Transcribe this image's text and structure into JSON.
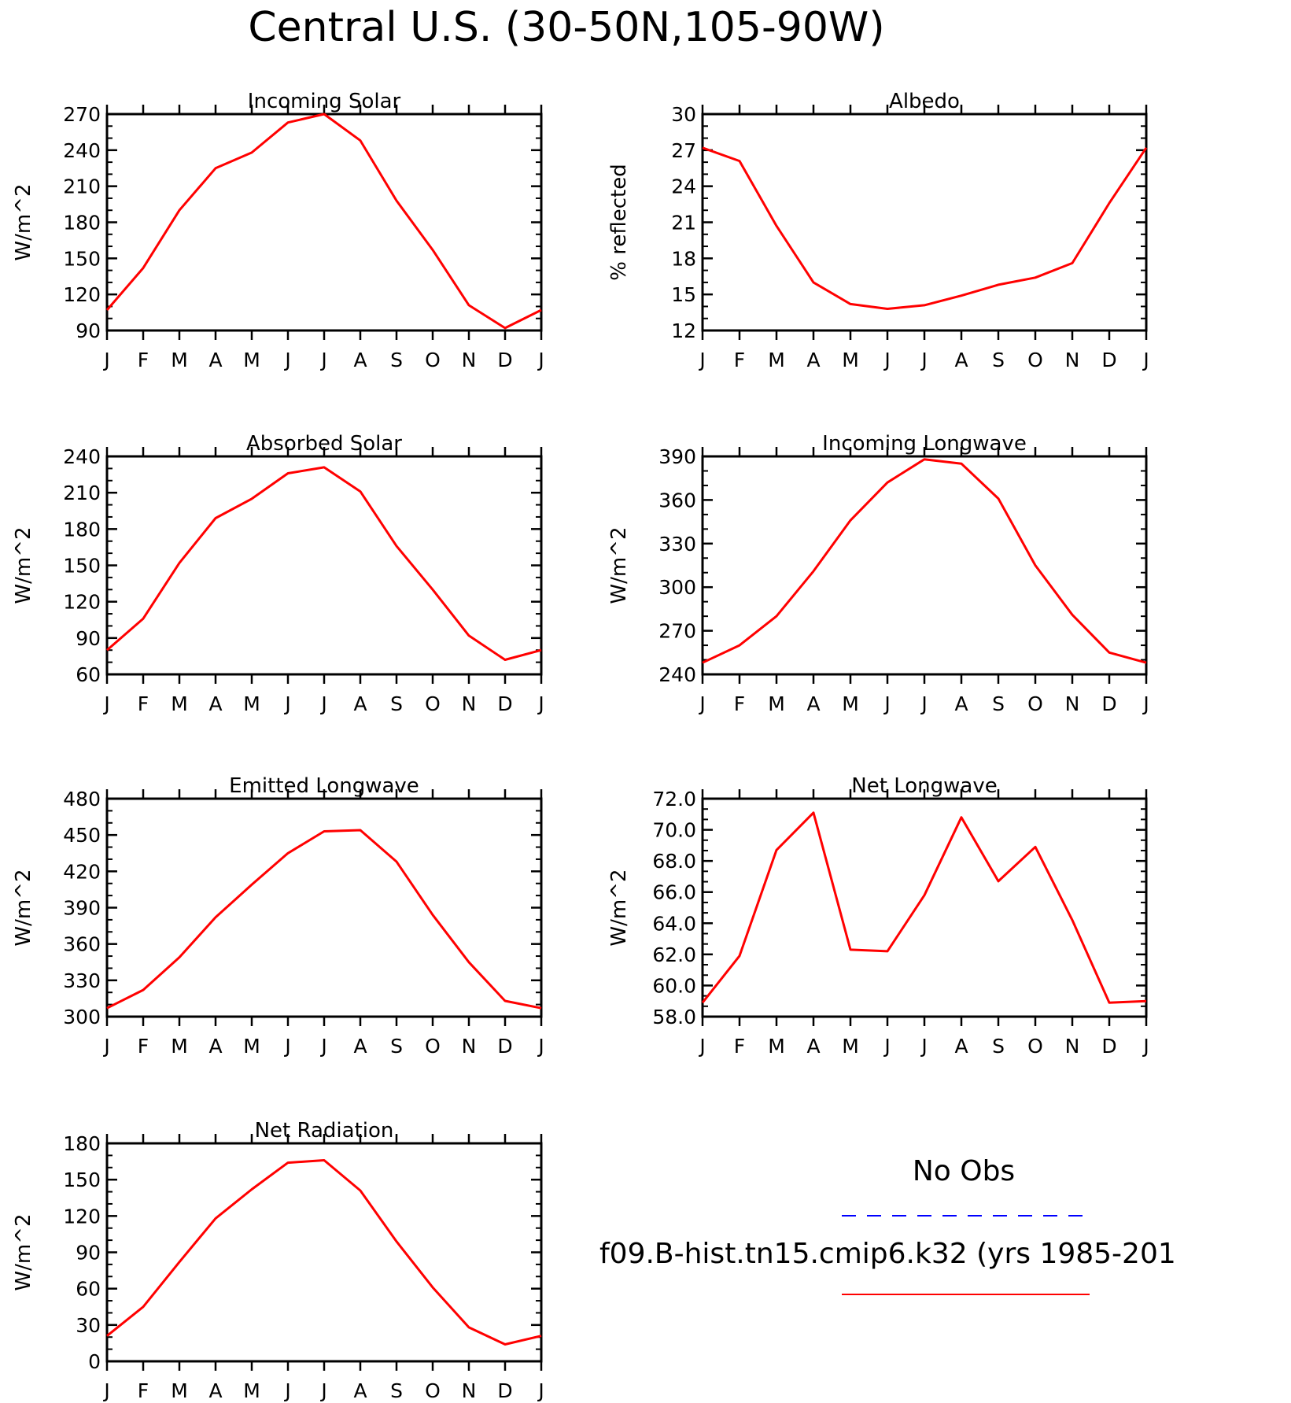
{
  "title": "Central U.S. (30-50N,105-90W)",
  "months": [
    "J",
    "F",
    "M",
    "A",
    "M",
    "J",
    "J",
    "A",
    "S",
    "O",
    "N",
    "D",
    "J"
  ],
  "colors": {
    "model": "#ff0000",
    "obs": "#0000ff",
    "axes": "#000000"
  },
  "legend": {
    "obs_label": "No Obs",
    "model_label": "f09.B-hist.tn15.cmip6.k32 (yrs 1985-201"
  },
  "chart_data": [
    {
      "type": "line",
      "title": "Incoming Solar",
      "ylabel": "W/m^2",
      "ylim": [
        90,
        270
      ],
      "yticks": [
        "90",
        "120",
        "150",
        "180",
        "210",
        "240",
        "270"
      ],
      "series": [
        {
          "values": [
            107,
            142,
            190,
            225,
            238,
            263,
            270,
            248,
            198,
            157,
            111,
            92,
            107
          ]
        }
      ]
    },
    {
      "type": "line",
      "title": "Albedo",
      "ylabel": "% reflected",
      "ylim": [
        12,
        30
      ],
      "yticks": [
        "12",
        "15",
        "18",
        "21",
        "24",
        "27",
        "30"
      ],
      "series": [
        {
          "values": [
            27.2,
            26.1,
            20.7,
            16.0,
            14.2,
            13.8,
            14.1,
            14.9,
            15.8,
            16.4,
            17.6,
            22.6,
            27.2
          ]
        }
      ]
    },
    {
      "type": "line",
      "title": "Absorbed Solar",
      "ylabel": "W/m^2",
      "ylim": [
        60,
        240
      ],
      "yticks": [
        "60",
        "90",
        "120",
        "150",
        "180",
        "210",
        "240"
      ],
      "series": [
        {
          "values": [
            80,
            106,
            152,
            189,
            205,
            226,
            231,
            211,
            166,
            130,
            92,
            72,
            80
          ]
        }
      ]
    },
    {
      "type": "line",
      "title": "Incoming Longwave",
      "ylabel": "W/m^2",
      "ylim": [
        240,
        390
      ],
      "yticks": [
        "240",
        "270",
        "300",
        "330",
        "360",
        "390"
      ],
      "series": [
        {
          "values": [
            248,
            260,
            280,
            311,
            346,
            372,
            388,
            385,
            361,
            315,
            281,
            255,
            248
          ]
        }
      ]
    },
    {
      "type": "line",
      "title": "Emitted Longwave",
      "ylabel": "W/m^2",
      "ylim": [
        300,
        480
      ],
      "yticks": [
        "300",
        "330",
        "360",
        "390",
        "420",
        "450",
        "480"
      ],
      "series": [
        {
          "values": [
            307,
            322,
            349,
            382,
            409,
            435,
            453,
            454,
            428,
            384,
            345,
            313,
            307
          ]
        }
      ]
    },
    {
      "type": "line",
      "title": "Net Longwave",
      "ylabel": "W/m^2",
      "ylim": [
        58,
        72
      ],
      "yticks": [
        "58.0",
        "60.0",
        "62.0",
        "64.0",
        "66.0",
        "68.0",
        "70.0",
        "72.0"
      ],
      "series": [
        {
          "values": [
            58.9,
            61.9,
            68.7,
            71.1,
            62.3,
            62.2,
            65.8,
            70.8,
            66.7,
            68.9,
            64.2,
            58.9,
            59.0
          ]
        }
      ]
    },
    {
      "type": "line",
      "title": "Net Radiation",
      "ylabel": "W/m^2",
      "ylim": [
        0,
        180
      ],
      "yticks": [
        "0",
        "30",
        "60",
        "90",
        "120",
        "150",
        "180"
      ],
      "series": [
        {
          "values": [
            21,
            45,
            82,
            118,
            142,
            164,
            166,
            141,
            99,
            61,
            28,
            14,
            21
          ]
        }
      ]
    }
  ]
}
